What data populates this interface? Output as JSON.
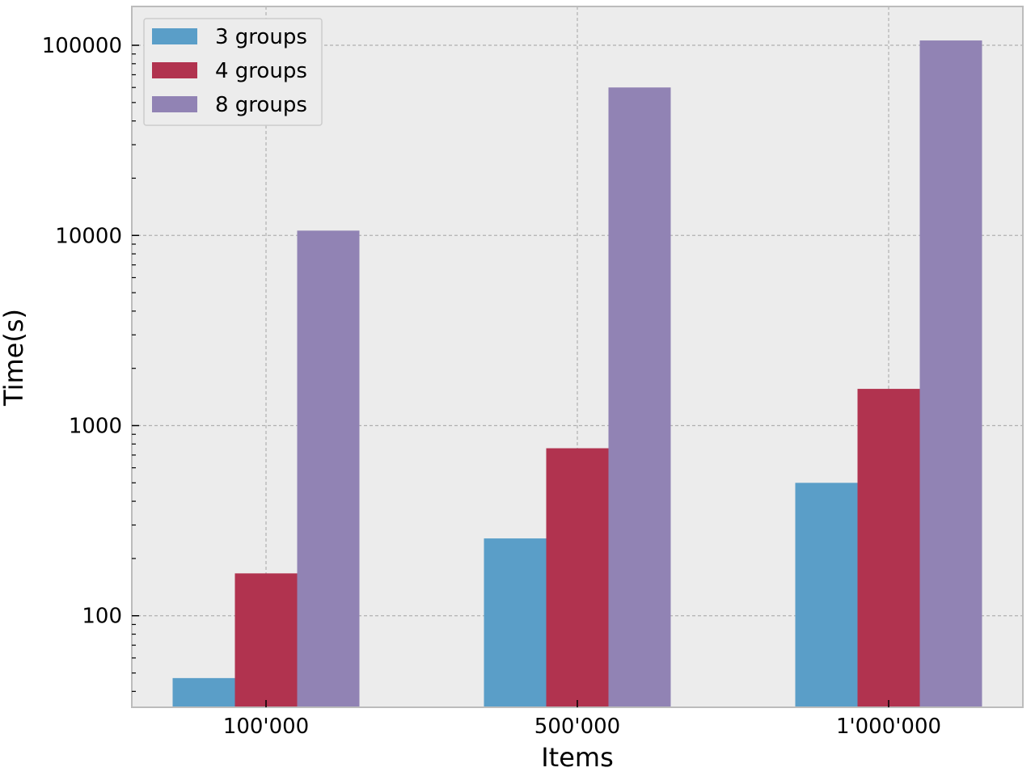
{
  "chart_data": {
    "type": "bar",
    "xlabel": "Items",
    "ylabel": "Time(s)",
    "yscale": "log",
    "ylim": [
      33,
      160000
    ],
    "yticks": [
      100,
      1000,
      10000,
      100000
    ],
    "ytick_labels": [
      "100",
      "1000",
      "10000",
      "100000"
    ],
    "categories": [
      "100'000",
      "500'000",
      "1'000'000"
    ],
    "series": [
      {
        "name": "3 groups",
        "color": "#5a9ec8",
        "values": [
          47,
          255,
          500
        ]
      },
      {
        "name": "4 groups",
        "color": "#b1334f",
        "values": [
          167,
          760,
          1560
        ]
      },
      {
        "name": "8 groups",
        "color": "#9183b4",
        "values": [
          10600,
          60000,
          106000
        ]
      }
    ],
    "grid": true,
    "legend_position": "top-left",
    "background": "#ececec"
  }
}
